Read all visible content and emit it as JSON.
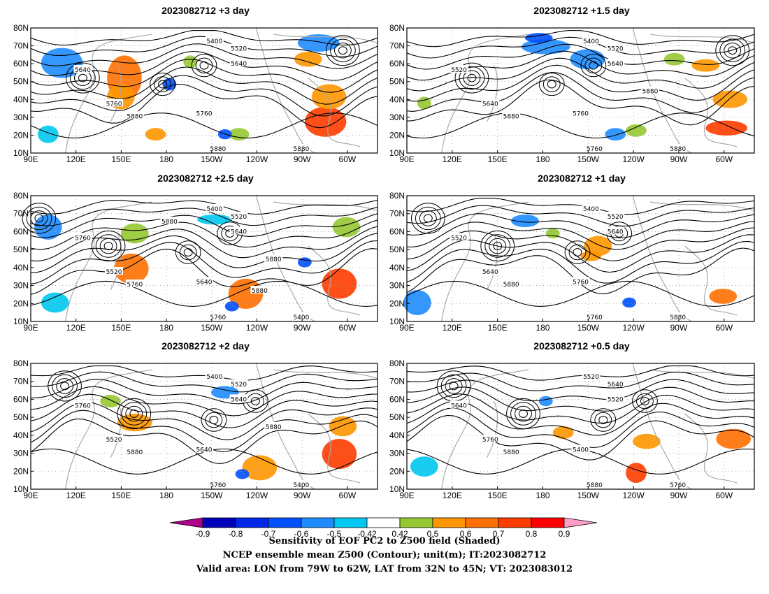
{
  "chart_data": {
    "type": "heatmap",
    "panels": [
      {
        "title": "2023082712  +3 day",
        "contour_labels": [
          "5400",
          "5520",
          "5640",
          "5640",
          "5760",
          "5760",
          "5880",
          "5880",
          "5880"
        ]
      },
      {
        "title": "2023082712  +1.5 day",
        "contour_labels": [
          "5400",
          "5520",
          "5640",
          "5520",
          "5640",
          "5760",
          "5760",
          "5880",
          "5880",
          "5880"
        ]
      },
      {
        "title": "2023082712  +2.5 day",
        "contour_labels": [
          "5400",
          "5520",
          "5640",
          "5760",
          "5520",
          "5640",
          "5760",
          "5400",
          "5760",
          "5880",
          "5880",
          "5880"
        ]
      },
      {
        "title": "2023082712  +1 day",
        "contour_labels": [
          "5400",
          "5520",
          "5640",
          "5520",
          "5640",
          "5760",
          "5760",
          "5880",
          "5880"
        ]
      },
      {
        "title": "2023082712  +2 day",
        "contour_labels": [
          "5400",
          "5520",
          "5640",
          "5760",
          "5520",
          "5640",
          "5760",
          "5400",
          "5880",
          "5880"
        ]
      },
      {
        "title": "2023082712  +0.5 day",
        "contour_labels": [
          "5520",
          "5640",
          "5520",
          "5640",
          "5760",
          "5400",
          "5880",
          "5760",
          "5880"
        ]
      }
    ],
    "x_ticks": [
      "90E",
      "120E",
      "150E",
      "180",
      "150W",
      "120W",
      "90W",
      "60W"
    ],
    "y_ticks": [
      "10N",
      "20N",
      "30N",
      "40N",
      "50N",
      "60N",
      "70N",
      "80N"
    ],
    "xlim": [
      "90E",
      "40W"
    ],
    "ylim": [
      "10N",
      "80N"
    ],
    "colorbar": {
      "labels": [
        "-0.9",
        "-0.8",
        "-0.7",
        "-0.6",
        "-0.5",
        "-0.42",
        "0.42",
        "0.5",
        "0.6",
        "0.7",
        "0.8",
        "0.9"
      ],
      "colors": [
        "#b0008a",
        "#0000b8",
        "#0028e6",
        "#0050ff",
        "#1e8cff",
        "#00c8f0",
        "#ffffff",
        "#96c832",
        "#ff9600",
        "#ff7000",
        "#ff3c00",
        "#ff0000",
        "#ff9fc8"
      ]
    },
    "footer_lines": [
      "Sensitivity of EOF PC2 to Z500 field (Shaded)",
      "NCEP ensemble mean Z500 (Contour); unit(m); IT:2023082712",
      "Valid area: LON from 79W to 62W, LAT from 32N to 45N; VT: 2023083012"
    ]
  }
}
